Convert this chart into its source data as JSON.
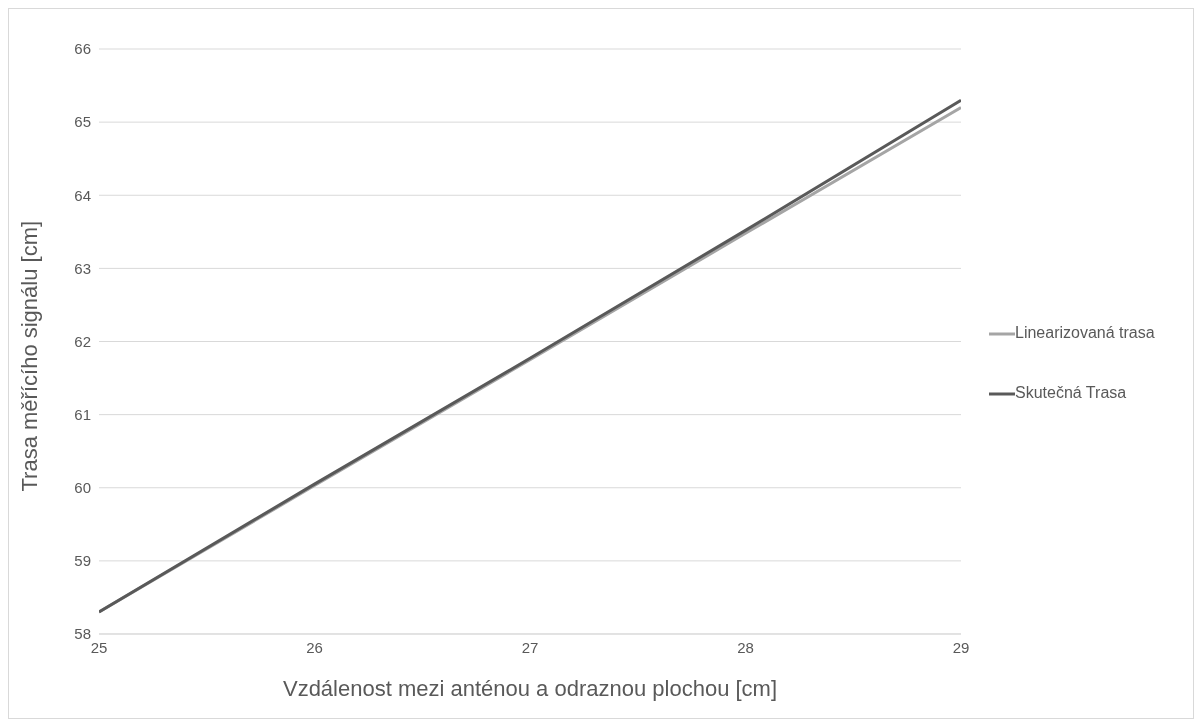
{
  "chart_data": {
    "type": "line",
    "xlabel": "Vzdálenost mezi anténou a odraznou plochou [cm]",
    "ylabel": "Trasa měřícího signálu [cm]",
    "x": [
      25,
      26,
      27,
      28,
      29
    ],
    "series": [
      {
        "name": "Linearizovaná trasa",
        "color": "#a5a5a5",
        "values": [
          58.3,
          60.03,
          61.75,
          63.48,
          65.2
        ]
      },
      {
        "name": "Skutečná Trasa",
        "color": "#595959",
        "values": [
          58.3,
          60.05,
          61.77,
          63.52,
          65.3
        ]
      }
    ],
    "xlim": [
      25,
      29
    ],
    "xticks": [
      25,
      26,
      27,
      28,
      29
    ],
    "ylim": [
      58,
      66
    ],
    "yticks": [
      58,
      59,
      60,
      61,
      62,
      63,
      64,
      65,
      66
    ],
    "grid": "y",
    "legend": "right",
    "marker": "none",
    "line_style": "solid"
  }
}
